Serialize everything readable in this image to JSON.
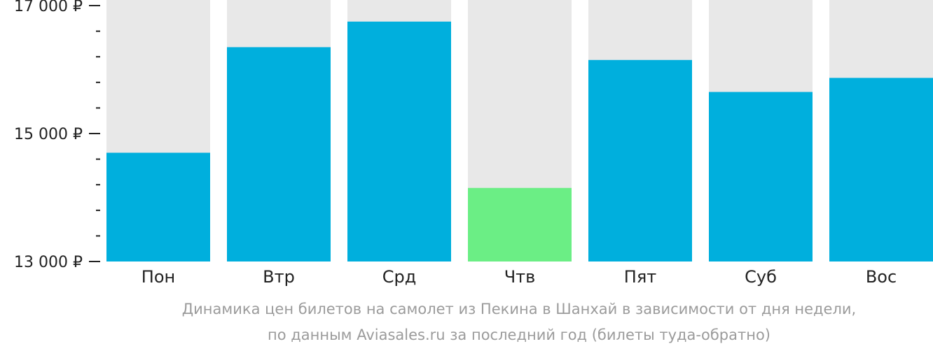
{
  "chart_data": {
    "type": "bar",
    "categories": [
      "Пон",
      "Втр",
      "Срд",
      "Чтв",
      "Пят",
      "Суб",
      "Вос"
    ],
    "values": [
      14700,
      16350,
      16750,
      14150,
      16150,
      15650,
      15870
    ],
    "ylim": [
      13000,
      17000
    ],
    "yticks": [
      {
        "value": 13000,
        "label": "13 000 ₽"
      },
      {
        "value": 15000,
        "label": "15 000 ₽"
      },
      {
        "value": 17000,
        "label": "17 000 ₽"
      }
    ],
    "minor_ticks": [
      13400,
      13800,
      14200,
      14600,
      15400,
      15800,
      16200,
      16600
    ],
    "highlight_index": 3,
    "colors": {
      "bar": "#00afdd",
      "highlight": "#6bee85",
      "background_bar": "#e8e8e8",
      "tick": "#222222"
    }
  },
  "caption": {
    "line1": "Динамика цен билетов на самолет из Пекина в Шанхай в зависимости от дня недели,",
    "line2": "по данным Aviasales.ru за последний год (билеты туда-обратно)"
  }
}
